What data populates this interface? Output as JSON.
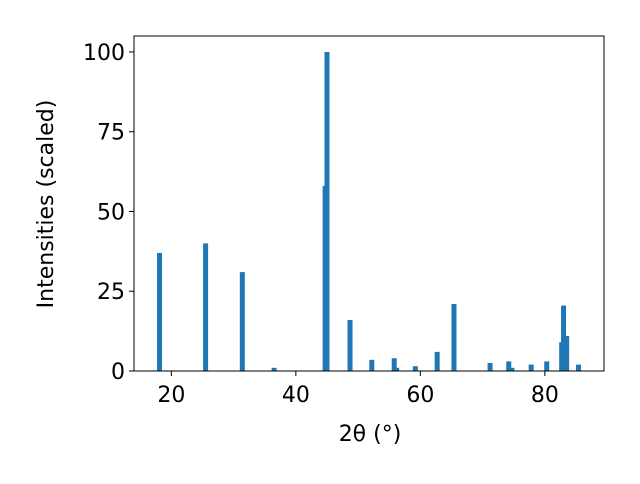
{
  "chart_data": {
    "type": "bar",
    "xlabel": "2θ (°)",
    "ylabel": "Intensities (scaled)",
    "x": [
      18.1,
      25.5,
      31.4,
      36.5,
      44.7,
      45.0,
      48.7,
      52.2,
      55.8,
      56.2,
      59.2,
      62.7,
      65.4,
      71.2,
      74.2,
      74.7,
      77.8,
      80.3,
      82.7,
      83.0,
      83.5,
      85.4
    ],
    "values": [
      37,
      40,
      31,
      1,
      58,
      100,
      16,
      3.5,
      4,
      1,
      1.5,
      6,
      21,
      2.5,
      3,
      1,
      2,
      3,
      9,
      20.5,
      11,
      2
    ],
    "color": "#1f77b4",
    "xlim": [
      14,
      89.5
    ],
    "ylim": [
      0,
      105
    ],
    "xticks": [
      20,
      40,
      60,
      80
    ],
    "yticks": [
      0,
      25,
      50,
      75,
      100
    ]
  }
}
